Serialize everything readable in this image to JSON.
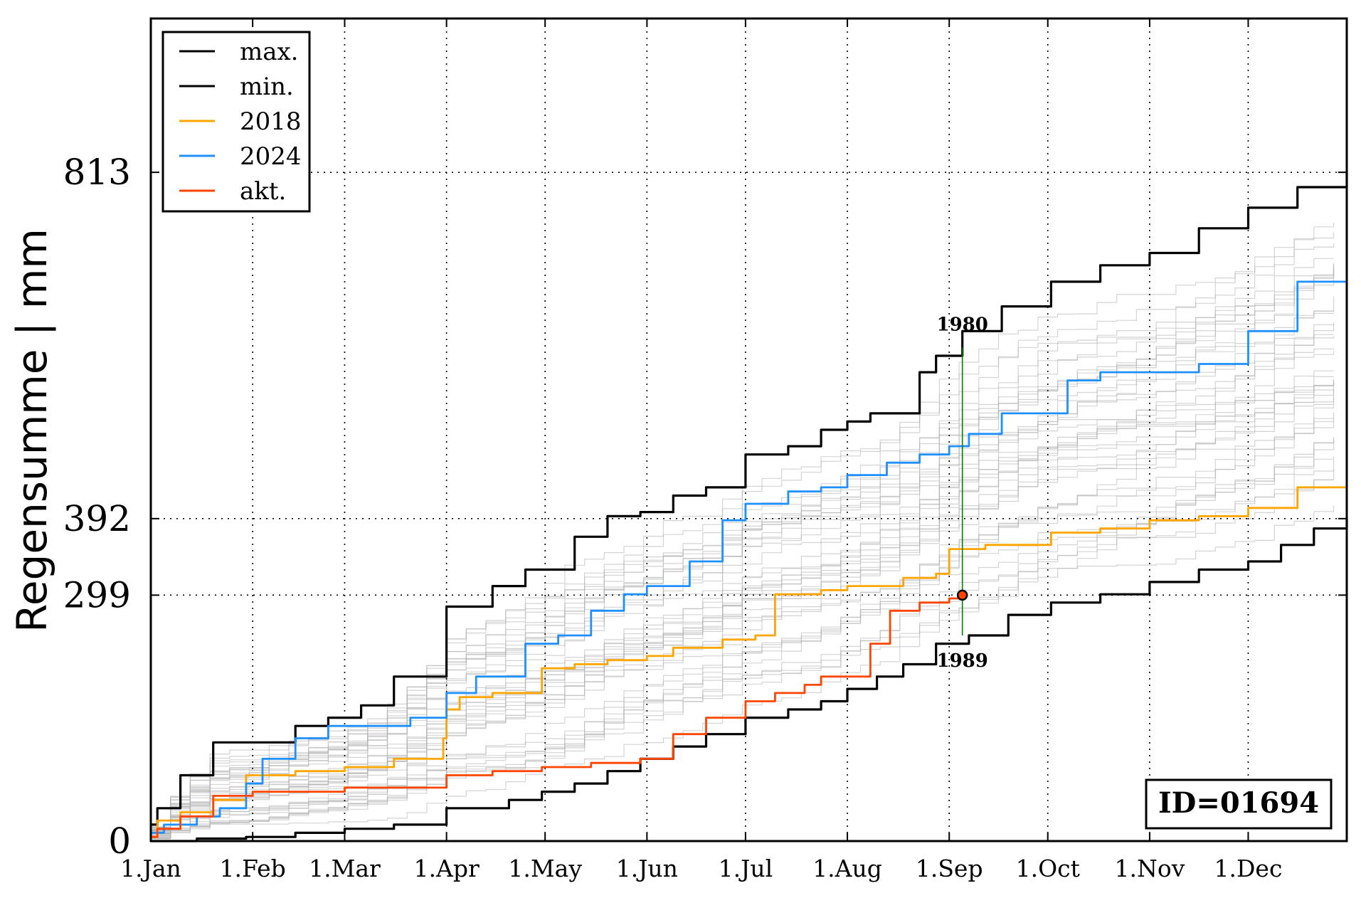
{
  "chart_data": {
    "type": "line",
    "title": "",
    "xlabel": "",
    "ylabel": "Regensumme | mm",
    "xlim": [
      1,
      365
    ],
    "ylim": [
      0,
      1000
    ],
    "grid": true,
    "legend_position": "top-left",
    "x_ticks": [
      {
        "day": 1,
        "label": "1.Jan"
      },
      {
        "day": 32,
        "label": "1.Feb"
      },
      {
        "day": 60,
        "label": "1.Mar"
      },
      {
        "day": 91,
        "label": "1.Apr"
      },
      {
        "day": 121,
        "label": "1.May"
      },
      {
        "day": 152,
        "label": "1.Jun"
      },
      {
        "day": 182,
        "label": "1.Jul"
      },
      {
        "day": 213,
        "label": "1.Aug"
      },
      {
        "day": 244,
        "label": "1.Sep"
      },
      {
        "day": 274,
        "label": "1.Oct"
      },
      {
        "day": 305,
        "label": "1.Nov"
      },
      {
        "day": 335,
        "label": "1.Dec"
      }
    ],
    "y_ticks": [
      0,
      299,
      392,
      813
    ],
    "series": [
      {
        "name": "max.",
        "color": "#000000",
        "x": [
          1,
          3,
          10,
          20,
          32,
          45,
          55,
          65,
          75,
          91,
          105,
          115,
          130,
          140,
          150,
          160,
          170,
          182,
          195,
          205,
          213,
          220,
          235,
          240,
          248,
          260,
          275,
          290,
          305,
          320,
          335,
          350,
          365
        ],
        "y": [
          20,
          40,
          80,
          120,
          120,
          140,
          150,
          165,
          200,
          285,
          310,
          330,
          370,
          395,
          400,
          420,
          430,
          470,
          480,
          500,
          510,
          520,
          570,
          590,
          620,
          650,
          680,
          700,
          715,
          745,
          770,
          795,
          815
        ]
      },
      {
        "name": "min.",
        "color": "#000000",
        "x": [
          1,
          15,
          30,
          45,
          60,
          75,
          91,
          110,
          120,
          130,
          140,
          150,
          160,
          170,
          182,
          195,
          205,
          213,
          222,
          230,
          240,
          250,
          262,
          275,
          290,
          305,
          320,
          335,
          345,
          355,
          365
        ],
        "y": [
          0,
          3,
          5,
          10,
          15,
          20,
          40,
          50,
          60,
          70,
          85,
          100,
          115,
          130,
          150,
          160,
          170,
          185,
          200,
          215,
          240,
          250,
          275,
          290,
          300,
          315,
          330,
          340,
          360,
          380,
          392
        ]
      },
      {
        "name": "2018",
        "color": "#ffa500",
        "x": [
          1,
          3,
          10,
          20,
          30,
          45,
          60,
          75,
          90,
          91,
          95,
          105,
          120,
          130,
          140,
          152,
          160,
          175,
          185,
          191,
          205,
          213,
          220,
          230,
          240,
          244,
          255,
          275,
          290,
          305,
          320,
          335,
          350,
          365
        ],
        "y": [
          5,
          25,
          35,
          50,
          80,
          85,
          90,
          100,
          125,
          160,
          175,
          180,
          210,
          215,
          220,
          225,
          235,
          245,
          250,
          300,
          305,
          310,
          310,
          320,
          325,
          355,
          360,
          375,
          380,
          390,
          395,
          405,
          430,
          460
        ]
      },
      {
        "name": "2024",
        "color": "#1e90ff",
        "x": [
          1,
          5,
          15,
          22,
          30,
          35,
          45,
          55,
          60,
          70,
          80,
          91,
          100,
          105,
          115,
          125,
          135,
          145,
          152,
          165,
          175,
          182,
          195,
          205,
          213,
          225,
          235,
          244,
          250,
          260,
          270,
          280,
          290,
          305,
          320,
          335,
          350,
          365
        ],
        "y": [
          10,
          20,
          30,
          40,
          70,
          100,
          125,
          140,
          140,
          140,
          150,
          180,
          200,
          200,
          240,
          250,
          280,
          300,
          310,
          340,
          390,
          410,
          425,
          430,
          445,
          460,
          470,
          480,
          495,
          520,
          520,
          560,
          570,
          570,
          580,
          620,
          680,
          715
        ]
      },
      {
        "name": "akt.",
        "color": "#ff4500",
        "x": [
          1,
          3,
          10,
          20,
          32,
          45,
          60,
          75,
          91,
          105,
          120,
          135,
          150,
          160,
          170,
          182,
          191,
          200,
          205,
          213,
          220,
          226,
          235,
          244,
          248
        ],
        "y": [
          5,
          15,
          30,
          55,
          60,
          60,
          65,
          65,
          80,
          85,
          90,
          95,
          100,
          130,
          150,
          170,
          180,
          190,
          200,
          200,
          240,
          280,
          290,
          295,
          299
        ]
      }
    ],
    "background_curve_count": 40,
    "annotations": [
      {
        "text": "1980",
        "x": 248,
        "y": 600,
        "kind": "max-on-date"
      },
      {
        "text": "1989",
        "x": 248,
        "y": 250,
        "kind": "min-on-date"
      }
    ],
    "current_marker": {
      "x": 248,
      "y": 299
    },
    "id_label": "ID=01694"
  },
  "colors": {
    "grid": "#000000",
    "background_lines": "#b0b0b0",
    "marker_line": "#008000"
  }
}
